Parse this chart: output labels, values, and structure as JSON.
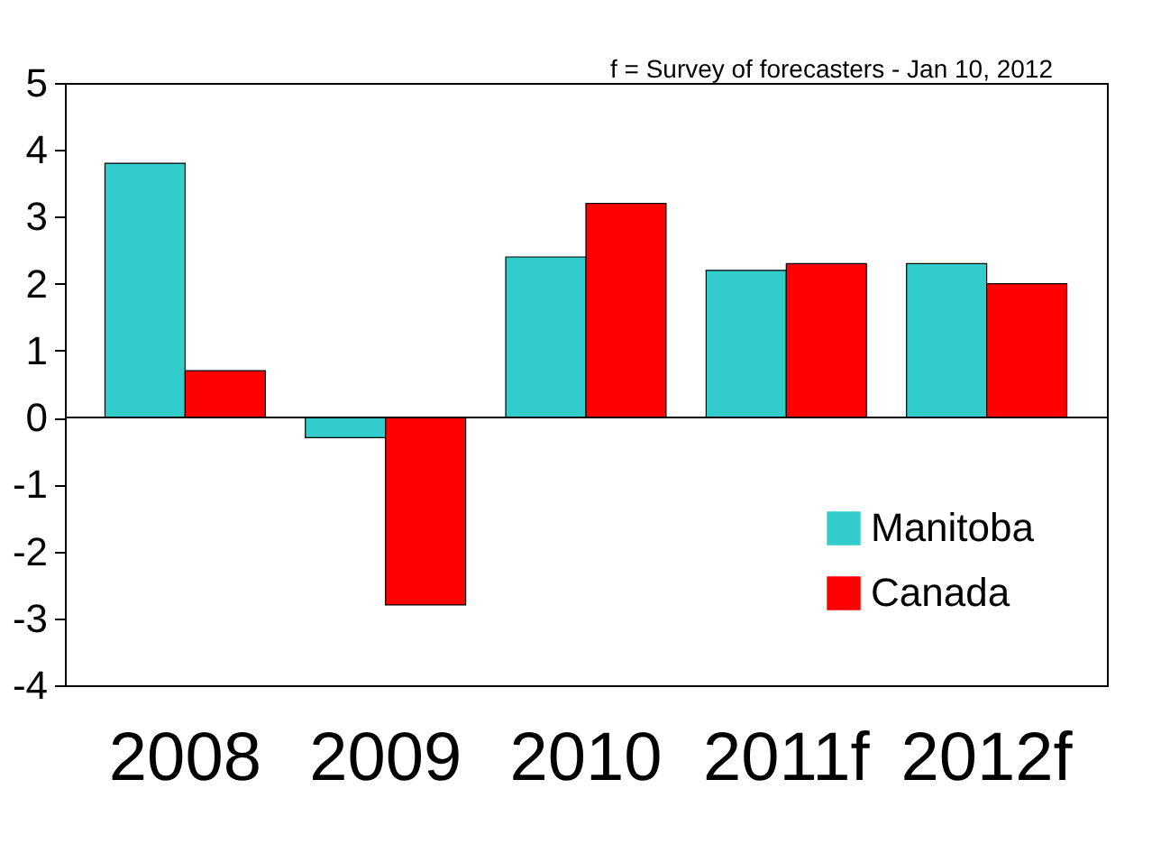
{
  "chart_data": {
    "type": "bar",
    "categories": [
      "2008",
      "2009",
      "2010",
      "2011f",
      "2012f"
    ],
    "series": [
      {
        "name": "Manitoba",
        "color": "#33cccc",
        "values": [
          3.8,
          -0.3,
          2.4,
          2.2,
          2.3
        ]
      },
      {
        "name": "Canada",
        "color": "#ff0000",
        "values": [
          0.7,
          -2.8,
          3.2,
          2.3,
          2.0
        ]
      }
    ],
    "ref_lines": [
      {
        "axis": "y",
        "value": 0,
        "color": "#000000"
      }
    ],
    "ylim": [
      -4,
      5
    ],
    "yticks": [
      -4,
      -3,
      -2,
      -1,
      0,
      1,
      2,
      3,
      4,
      5
    ],
    "grid": false,
    "legend": "bottom right",
    "annotations": [
      "f = Survey of forecasters - Jan 10, 2012"
    ]
  }
}
